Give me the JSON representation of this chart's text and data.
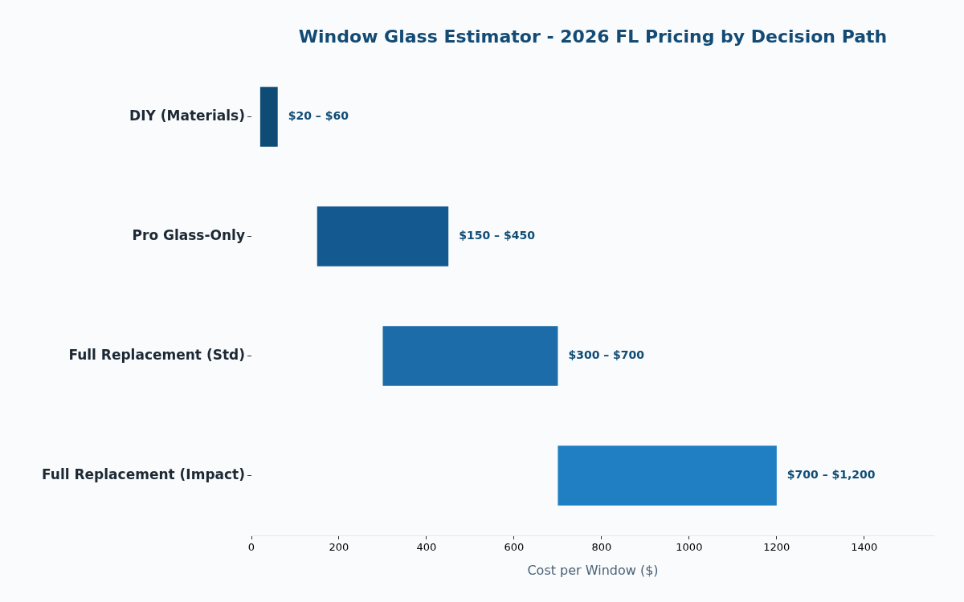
{
  "chart_data": {
    "type": "bar",
    "orientation": "horizontal",
    "title": "Window Glass Estimator - 2026 FL Pricing by Decision Path",
    "xlabel": "Cost per Window ($)",
    "categories": [
      "DIY (Materials)",
      "Pro Glass-Only",
      "Full Replacement (Std)",
      "Full Replacement (Impact)"
    ],
    "base": [
      20,
      150,
      300,
      700
    ],
    "values": [
      40,
      300,
      400,
      500
    ],
    "colors": [
      "#0f4c75",
      "#14598f",
      "#1b6ca8",
      "#1f7fc2"
    ],
    "annotations": [
      {
        "text": "$20 – $60",
        "x": 60,
        "y": "DIY (Materials)"
      },
      {
        "text": "$150 – $450",
        "x": 450,
        "y": "Pro Glass-Only"
      },
      {
        "text": "$300 – $700",
        "x": 700,
        "y": "Full Replacement (Std)"
      },
      {
        "text": "$700 – $1,200",
        "x": 1200,
        "y": "Full Replacement (Impact)"
      }
    ],
    "xlim": [
      0,
      1560
    ],
    "xticks": [
      0,
      200,
      400,
      600,
      800,
      1000,
      1200,
      1400
    ],
    "grid": false,
    "legend": false
  }
}
